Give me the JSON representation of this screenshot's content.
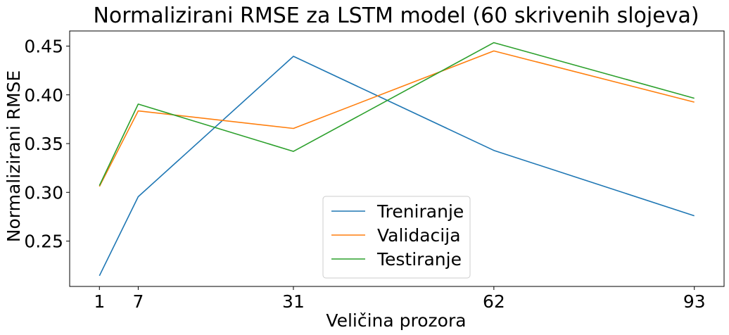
{
  "chart_data": {
    "type": "line",
    "title": "Normalizirani RMSE za LSTM model (60 skrivenih slojeva)",
    "xlabel": "Veličina prozora",
    "ylabel": "Normalizirani RMSE",
    "x": [
      1,
      7,
      31,
      62,
      93
    ],
    "xticks": [
      1,
      7,
      31,
      62,
      93
    ],
    "xtick_labels": [
      "1",
      "7",
      "31",
      "62",
      "93"
    ],
    "yticks": [
      0.25,
      0.3,
      0.35,
      0.4,
      0.45
    ],
    "ytick_labels": [
      "0.25",
      "0.30",
      "0.35",
      "0.40",
      "0.45"
    ],
    "xlim": [
      -3.6,
      97.6
    ],
    "ylim": [
      0.2035,
      0.4655
    ],
    "grid": false,
    "legend_position": "lower-center",
    "series": [
      {
        "name": "Treniranje",
        "color": "#1f77b4",
        "values": [
          0.2145,
          0.2955,
          0.4395,
          0.343,
          0.276
        ]
      },
      {
        "name": "Validacija",
        "color": "#ff7f0e",
        "values": [
          0.306,
          0.3835,
          0.3655,
          0.445,
          0.3925
        ]
      },
      {
        "name": "Testiranje",
        "color": "#2ca02c",
        "values": [
          0.307,
          0.3905,
          0.342,
          0.4535,
          0.3965
        ]
      }
    ]
  }
}
